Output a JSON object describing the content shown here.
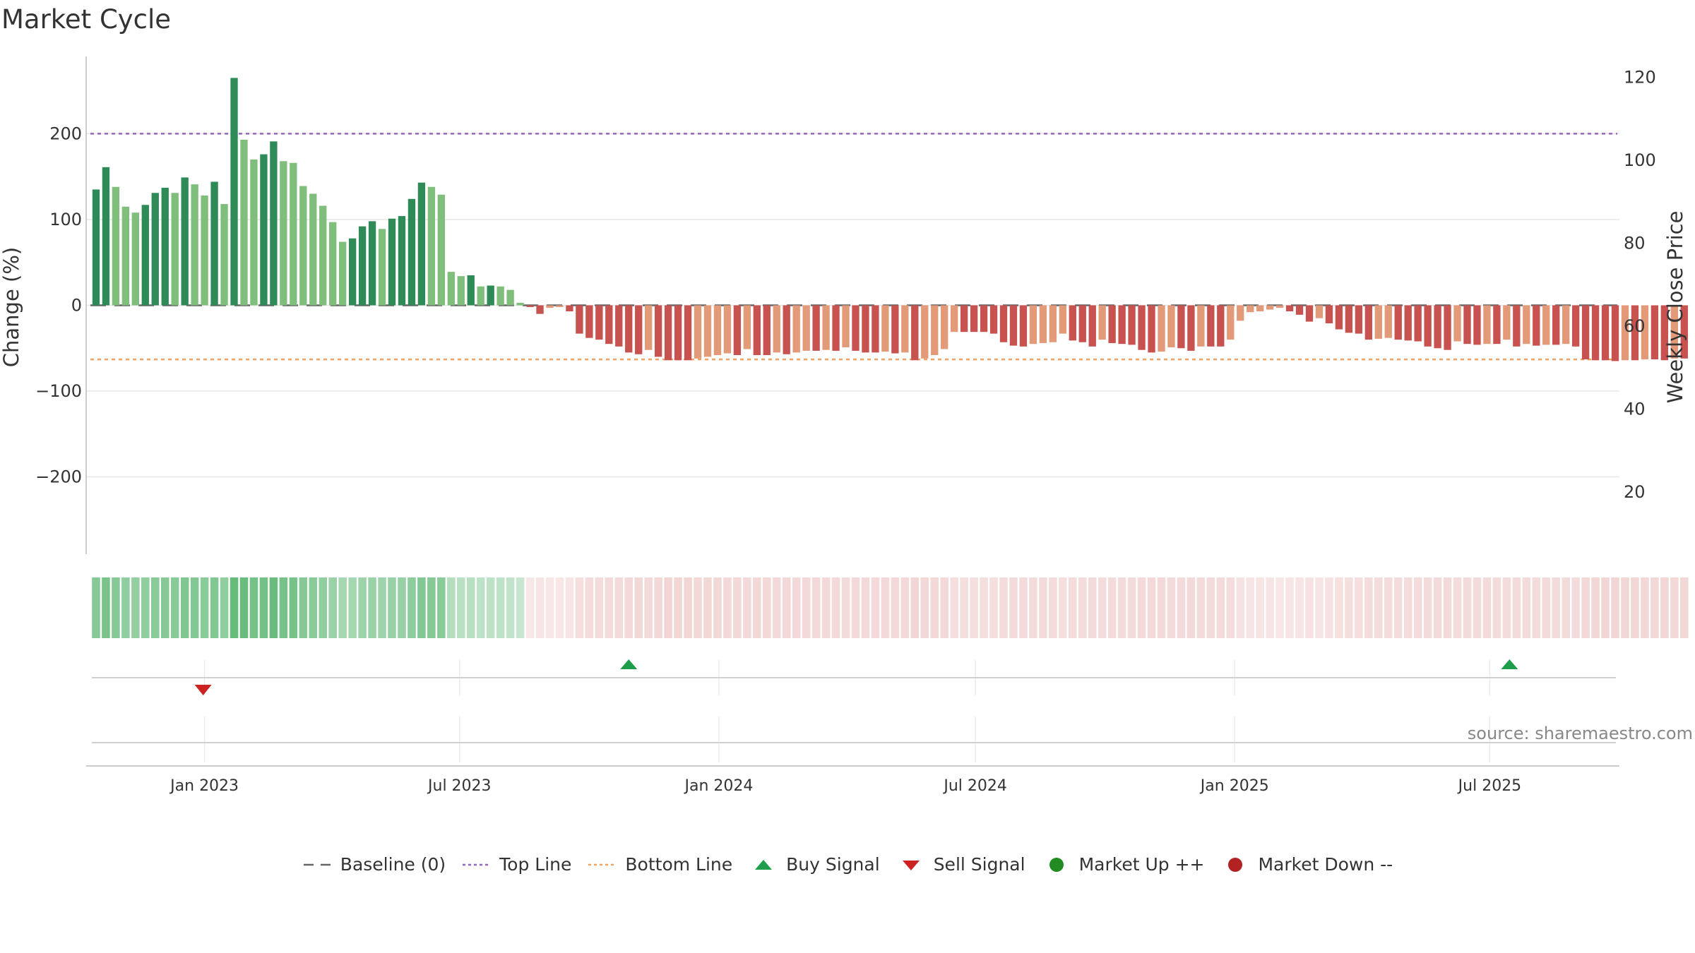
{
  "chart_data": {
    "type": "bar",
    "title": "Market Cycle",
    "ylabel_left": "Change (%)",
    "ylabel_right": "Weekly Close Price",
    "source_text": "source: sharemaestro.com",
    "ylim_left": [
      -290,
      290
    ],
    "yticks_left": [
      {
        "value": 200,
        "label": "200"
      },
      {
        "value": 100,
        "label": "100"
      },
      {
        "value": 0,
        "label": "0"
      },
      {
        "value": -100,
        "label": "−100"
      },
      {
        "value": -200,
        "label": "−200"
      }
    ],
    "ylim_right": [
      5,
      125
    ],
    "yticks_right": [
      {
        "value": 120,
        "label": "120"
      },
      {
        "value": 100,
        "label": "100"
      },
      {
        "value": 80,
        "label": "80"
      },
      {
        "value": 60,
        "label": "60"
      },
      {
        "value": 40,
        "label": "40"
      },
      {
        "value": 20,
        "label": "20"
      }
    ],
    "x_start": "2022-10-09",
    "x_end": "2025-10-01",
    "xticks": [
      {
        "date": "2023-01-01",
        "label": "Jan 2023"
      },
      {
        "date": "2023-07-01",
        "label": "Jul 2023"
      },
      {
        "date": "2024-01-01",
        "label": "Jan 2024"
      },
      {
        "date": "2024-07-01",
        "label": "Jul 2024"
      },
      {
        "date": "2025-01-01",
        "label": "Jan 2025"
      },
      {
        "date": "2025-07-01",
        "label": "Jul 2025"
      }
    ],
    "reference_lines": [
      {
        "name": "Top Line",
        "value": 200,
        "color": "#9467bd"
      },
      {
        "name": "Bottom Line",
        "value": -63,
        "color": "#f4a261"
      },
      {
        "name": "Baseline (0)",
        "value": 0,
        "color": "#666666"
      }
    ],
    "first_week": "2022-10-16",
    "week_step_days": 7,
    "values": [
      135,
      161,
      138,
      115,
      108,
      117,
      131,
      137,
      131,
      149,
      141,
      128,
      144,
      118,
      265,
      193,
      170,
      176,
      191,
      168,
      166,
      139,
      130,
      116,
      97,
      74,
      78,
      92,
      98,
      89,
      101,
      104,
      124,
      143,
      138,
      129,
      39,
      34,
      35,
      22,
      23,
      22,
      18,
      3,
      -2,
      -10,
      -3,
      -2,
      -7,
      -33,
      -38,
      -40,
      -45,
      -48,
      -55,
      -57,
      -52,
      -60,
      -64,
      -64,
      -64,
      -62,
      -60,
      -58,
      -56,
      -58,
      -51,
      -58,
      -58,
      -55,
      -57,
      -55,
      -53,
      -53,
      -52,
      -53,
      -49,
      -53,
      -55,
      -55,
      -54,
      -56,
      -55,
      -64,
      -62,
      -58,
      -51,
      -31,
      -31,
      -31,
      -31,
      -33,
      -43,
      -47,
      -48,
      -45,
      -44,
      -43,
      -33,
      -41,
      -43,
      -48,
      -40,
      -44,
      -45,
      -46,
      -52,
      -55,
      -54,
      -49,
      -50,
      -53,
      -48,
      -48,
      -48,
      -40,
      -18,
      -8,
      -7,
      -5,
      -3,
      -7,
      -11,
      -19,
      -15,
      -21,
      -28,
      -32,
      -33,
      -40,
      -39,
      -38,
      -40,
      -41,
      -42,
      -48,
      -50,
      -52,
      -42,
      -45,
      -46,
      -45,
      -45,
      -40,
      -48,
      -45,
      -47,
      -46,
      -46,
      -45,
      -48,
      -63,
      -64,
      -64,
      -65,
      -64,
      -64,
      -63,
      -63,
      -64,
      -62,
      -62
    ],
    "color_scheme": {
      "up_dark": "#2e8b57",
      "up_light": "#7fbf7b",
      "down_dark": "#c8524f",
      "down_light": "#e39a79"
    },
    "signals": [
      {
        "type": "Sell Signal",
        "date": "2022-12-31",
        "color": "#cc2222"
      },
      {
        "type": "Buy Signal",
        "date": "2023-10-29",
        "color": "#1e9e4a"
      },
      {
        "type": "Buy Signal",
        "date": "2025-07-15",
        "color": "#1e9e4a"
      }
    ],
    "legend": [
      {
        "label": "Baseline (0)",
        "symbol": "dash",
        "color": "#666666"
      },
      {
        "label": "Top Line",
        "symbol": "dot",
        "color": "#9467bd"
      },
      {
        "label": "Bottom Line",
        "symbol": "dot",
        "color": "#f4a261"
      },
      {
        "label": "Buy Signal",
        "symbol": "triangle-up",
        "color": "#1e9e4a"
      },
      {
        "label": "Sell Signal",
        "symbol": "triangle-down",
        "color": "#cc2222"
      },
      {
        "label": "Market Up ++",
        "symbol": "circle",
        "color": "#228b22"
      },
      {
        "label": "Market Down --",
        "symbol": "circle",
        "color": "#b22222"
      }
    ]
  }
}
